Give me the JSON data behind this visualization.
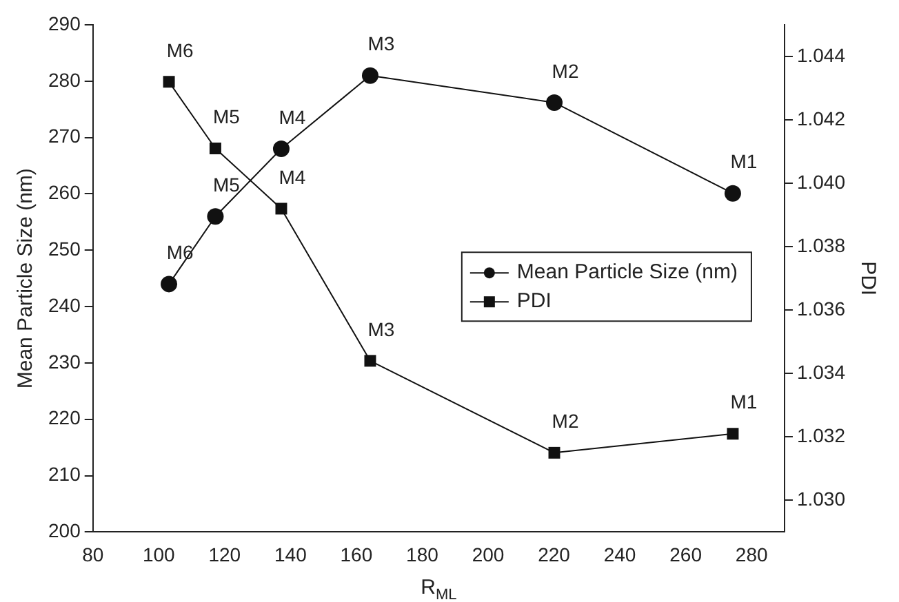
{
  "chart_data": {
    "type": "line",
    "xlabel": "R$_{ML}$",
    "ylabel": "Mean Particle Size (nm)",
    "y2label": "PDI",
    "x": [
      103.1,
      117.2,
      137.2,
      164.2,
      220.1,
      274.3
    ],
    "series": [
      {
        "name": "Mean Particle Size (nm)",
        "color": "#111111",
        "marker": "circle",
        "values": [
          244,
          256,
          268,
          281,
          276.2,
          260.1
        ],
        "value_labels": [
          "M6",
          "M5",
          "M4",
          "M3",
          "M2",
          "M1"
        ]
      },
      {
        "name": "PDI",
        "color": "#111111",
        "marker": "square",
        "axis": "y2",
        "values": [
          1.0432,
          1.0411,
          1.0392,
          1.0344,
          1.0315,
          1.0321
        ],
        "value_labels": [
          "M6",
          "M5",
          "M4",
          "M3",
          "M2",
          "M1"
        ]
      }
    ],
    "xlim": [
      80,
      290
    ],
    "xticks": [
      80,
      100,
      120,
      140,
      160,
      180,
      200,
      220,
      240,
      260,
      280
    ],
    "ylim": [
      200,
      290
    ],
    "yticks": [
      200,
      210,
      220,
      230,
      240,
      250,
      260,
      270,
      280,
      290
    ],
    "y2lim": [
      1.029,
      1.045
    ],
    "y2ticks": [
      {
        "value": 1.03,
        "label": "1.030"
      },
      {
        "value": 1.032,
        "label": "1.032"
      },
      {
        "value": 1.034,
        "label": "1.034"
      },
      {
        "value": 1.036,
        "label": "1.036"
      },
      {
        "value": 1.038,
        "label": "1.038"
      },
      {
        "value": 1.04,
        "label": "1.040"
      },
      {
        "value": 1.042,
        "label": "1.042"
      },
      {
        "value": 1.044,
        "label": "1.044"
      }
    ],
    "grid": false,
    "legend": "right",
    "line_style": "solid"
  }
}
